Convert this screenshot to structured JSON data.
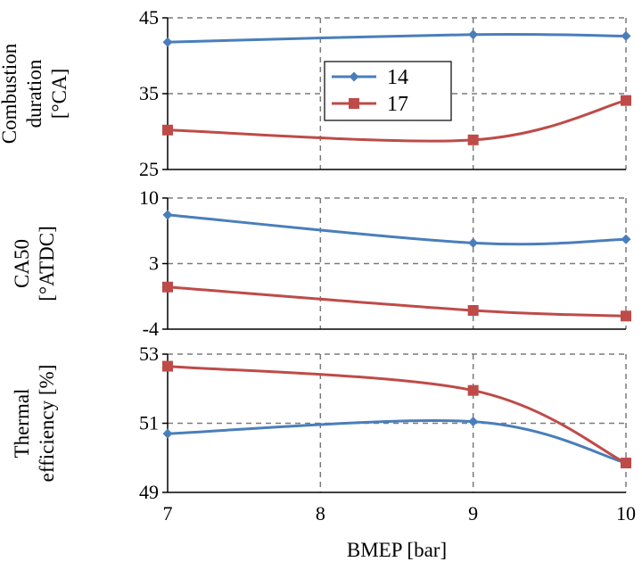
{
  "chart_data": {
    "type": "line",
    "x": [
      7,
      9,
      10
    ],
    "x_ticks": [
      "7",
      "8",
      "9",
      "10"
    ],
    "xlabel": "BMEP  [bar]",
    "xlim": [
      7,
      10
    ],
    "grid": true,
    "legend_position": "top-center-of-top-panel",
    "legend": [
      {
        "name": "14",
        "color": "#4a7ebb",
        "marker": "diamond"
      },
      {
        "name": "17",
        "color": "#be4b48",
        "marker": "square"
      }
    ],
    "panels": [
      {
        "ylabel_lines": [
          "Combustion",
          "duration",
          "[°CA]"
        ],
        "ylim": [
          25,
          45
        ],
        "y_ticks": [
          "25",
          "35",
          "45"
        ],
        "series": [
          {
            "name": "14",
            "values": [
              41.8,
              42.8,
              42.6
            ]
          },
          {
            "name": "17",
            "values": [
              30.2,
              28.9,
              34.1
            ]
          }
        ]
      },
      {
        "ylabel_lines": [
          "CA50",
          "[°ATDC]"
        ],
        "ylim": [
          -4,
          10
        ],
        "y_ticks": [
          "-4",
          "3",
          "10"
        ],
        "series": [
          {
            "name": "14",
            "values": [
              8.2,
              5.2,
              5.6
            ]
          },
          {
            "name": "17",
            "values": [
              0.5,
              -2.0,
              -2.6
            ]
          }
        ]
      },
      {
        "ylabel_lines": [
          "Thermal",
          "efficiency  [%]"
        ],
        "ylim": [
          49,
          53
        ],
        "y_ticks": [
          "49",
          "51",
          "53"
        ],
        "series": [
          {
            "name": "14",
            "values": [
              50.7,
              51.05,
              49.85
            ]
          },
          {
            "name": "17",
            "values": [
              52.65,
              51.95,
              49.85
            ]
          }
        ]
      }
    ]
  }
}
